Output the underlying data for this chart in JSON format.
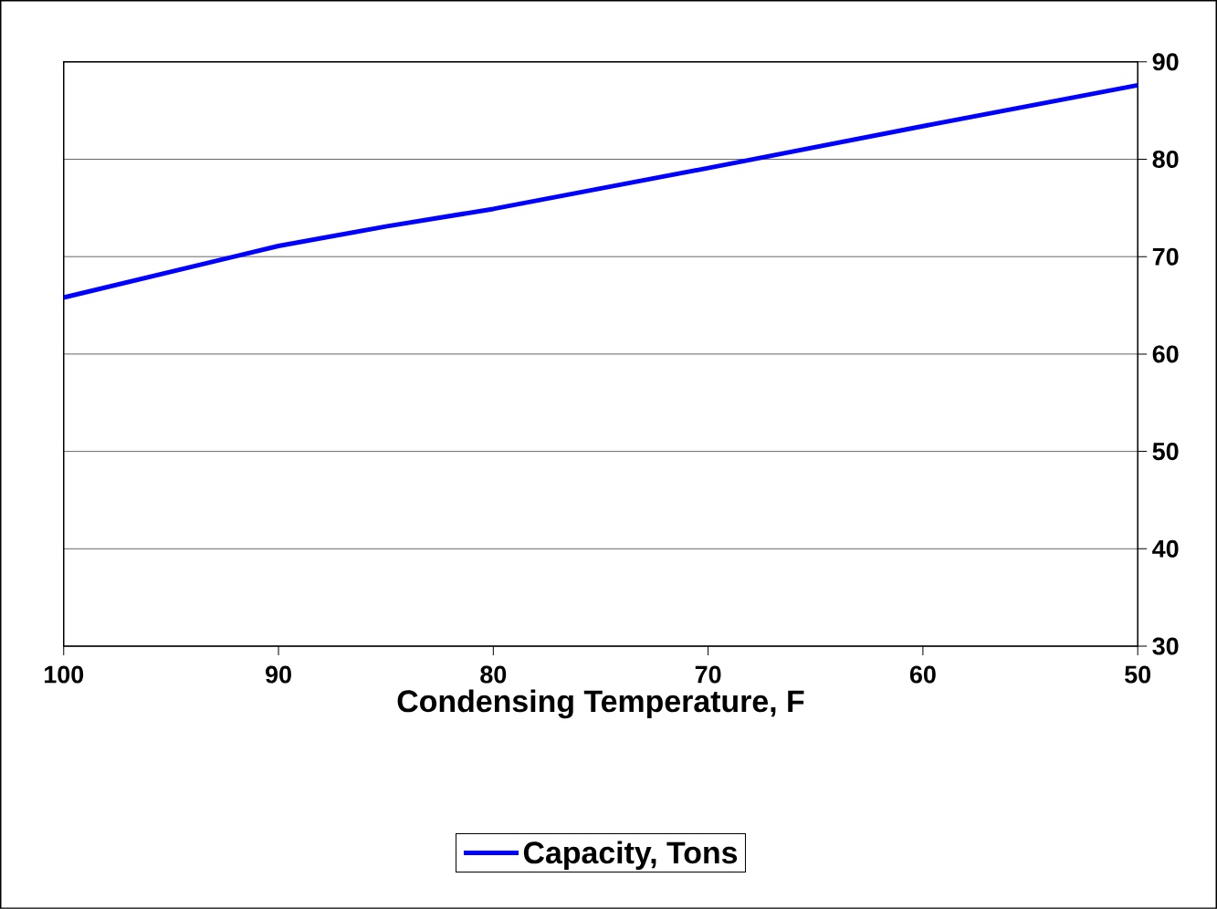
{
  "chart_data": {
    "type": "line",
    "xlabel": "Condensing Temperature, F",
    "x": [
      100,
      90,
      85,
      80,
      70,
      60,
      50
    ],
    "series": [
      {
        "name": "Capacity, Tons",
        "color": "#0000ff",
        "values": [
          65.8,
          71.1,
          73.1,
          74.9,
          79.1,
          83.4,
          87.6
        ]
      }
    ],
    "xlim": [
      100,
      50
    ],
    "xticks": [
      100,
      90,
      80,
      70,
      60,
      50
    ],
    "ylim": [
      30,
      90
    ],
    "yticks": [
      30,
      40,
      50,
      60,
      70,
      80,
      90
    ],
    "grid": "y",
    "legend": "bottom",
    "marker": "none",
    "line_style": "solid"
  }
}
